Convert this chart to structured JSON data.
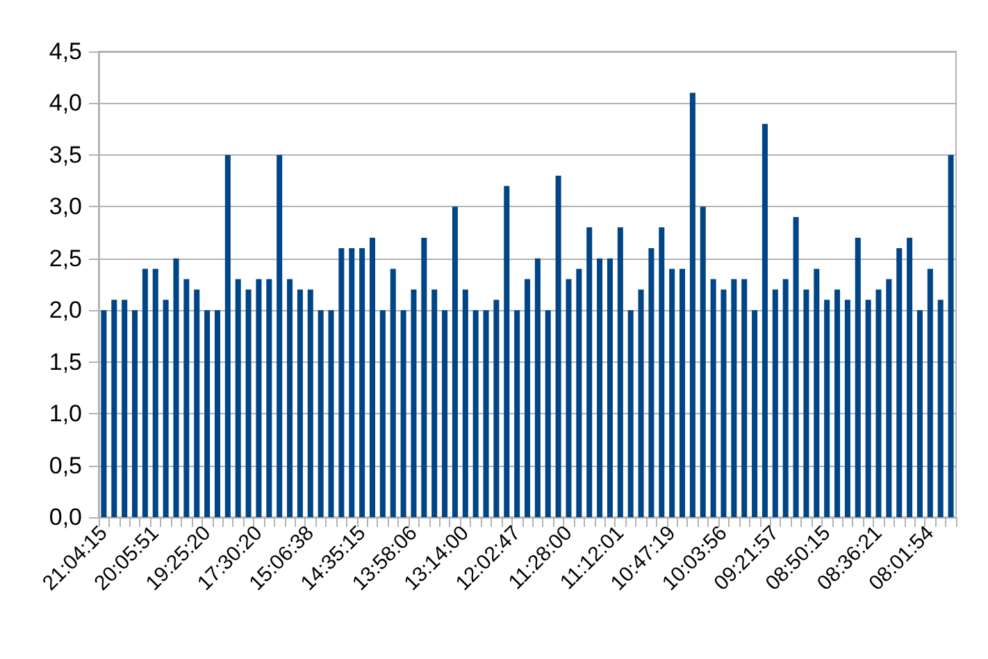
{
  "chart_data": {
    "type": "bar",
    "color": "#004586",
    "categories": [
      "21:04:15",
      null,
      null,
      null,
      null,
      "20:05:51",
      null,
      null,
      null,
      null,
      "19:25:20",
      null,
      null,
      null,
      null,
      "17:30:20",
      null,
      null,
      null,
      null,
      "15:06:38",
      null,
      null,
      null,
      null,
      "14:35:15",
      null,
      null,
      null,
      null,
      "13:58:06",
      null,
      null,
      null,
      null,
      "13:14:00",
      null,
      null,
      null,
      null,
      "12:02:47",
      null,
      null,
      null,
      null,
      "11:28:00",
      null,
      null,
      null,
      null,
      "11:12:01",
      null,
      null,
      null,
      null,
      "10:47:19",
      null,
      null,
      null,
      null,
      "10:03:56",
      null,
      null,
      null,
      null,
      "09:21:57",
      null,
      null,
      null,
      null,
      "08:50:15",
      null,
      null,
      null,
      null,
      "08:36:21",
      null,
      null,
      null,
      null,
      "08:01:54",
      null,
      null
    ],
    "values": [
      2.0,
      2.1,
      2.1,
      2.0,
      2.4,
      2.4,
      2.1,
      2.5,
      2.3,
      2.2,
      2.0,
      2.0,
      3.5,
      2.3,
      2.2,
      2.3,
      2.3,
      3.5,
      2.3,
      2.2,
      2.2,
      2.0,
      2.0,
      2.6,
      2.6,
      2.6,
      2.7,
      2.0,
      2.4,
      2.0,
      2.2,
      2.7,
      2.2,
      2.0,
      3.0,
      2.2,
      2.0,
      2.0,
      2.1,
      3.2,
      2.0,
      2.3,
      2.5,
      2.0,
      3.3,
      2.3,
      2.4,
      2.8,
      2.5,
      2.5,
      2.8,
      2.0,
      2.2,
      2.6,
      2.8,
      2.4,
      2.4,
      4.1,
      3.0,
      2.3,
      2.2,
      2.3,
      2.3,
      2.0,
      3.8,
      2.2,
      2.3,
      2.9,
      2.2,
      2.4,
      2.1,
      2.2,
      2.1,
      2.7,
      2.1,
      2.2,
      2.3,
      2.6,
      2.7,
      2.0,
      2.4,
      2.1,
      3.5
    ],
    "ylim": [
      0,
      4.5
    ],
    "yticks": [
      {
        "value": 0,
        "label": "0,0"
      },
      {
        "value": 0.5,
        "label": "0,5"
      },
      {
        "value": 1,
        "label": "1,0"
      },
      {
        "value": 1.5,
        "label": "1,5"
      },
      {
        "value": 2,
        "label": "2,0"
      },
      {
        "value": 2.5,
        "label": "2,5"
      },
      {
        "value": 3,
        "label": "3,0"
      },
      {
        "value": 3.5,
        "label": "3,5"
      },
      {
        "value": 4,
        "label": "4,0"
      },
      {
        "value": 4.5,
        "label": "4,5"
      }
    ],
    "grid": "y"
  }
}
